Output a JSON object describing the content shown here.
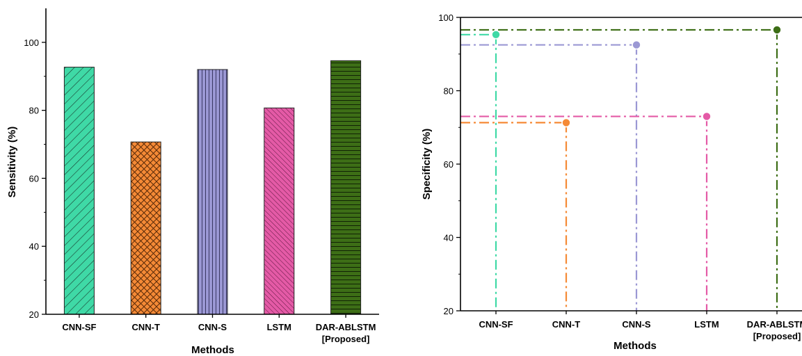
{
  "chart_data": [
    {
      "type": "bar",
      "categories": [
        "CNN-SF",
        "CNN-T",
        "CNN-S",
        "LSTM",
        "DAR-ABLSTM\n[Proposed]"
      ],
      "values": [
        92.7,
        70.7,
        92.0,
        80.7,
        94.6
      ],
      "xlabel": "Methods",
      "ylabel": "Sensitivity (%)",
      "ylim": [
        20,
        110
      ],
      "yticks": [
        20,
        40,
        60,
        80,
        100
      ],
      "grid": false,
      "legend": "none",
      "colors": [
        "#3fd9a6",
        "#f58a36",
        "#9b98d4",
        "#e45aa6",
        "#3d6e16"
      ],
      "patterns": [
        "diagonal-hatch",
        "crosshatch",
        "vertical-lines",
        "dense-diagonal",
        "horizontal-lines"
      ]
    },
    {
      "type": "scatter",
      "categories": [
        "CNN-SF",
        "CNN-T",
        "CNN-S",
        "LSTM",
        "DAR-ABLSTM\n[Proposed]"
      ],
      "values": [
        95.3,
        71.3,
        92.5,
        73.0,
        96.6
      ],
      "xlabel": "Methods",
      "ylabel": "Specificity (%)",
      "ylim": [
        20,
        100
      ],
      "yticks": [
        20,
        40,
        60,
        80,
        100
      ],
      "grid": false,
      "legend": "none",
      "drop_lines": "dash-dot to both axes",
      "colors": [
        "#3fd9a6",
        "#f58a36",
        "#9b98d4",
        "#e45aa6",
        "#3d6e16"
      ]
    }
  ]
}
